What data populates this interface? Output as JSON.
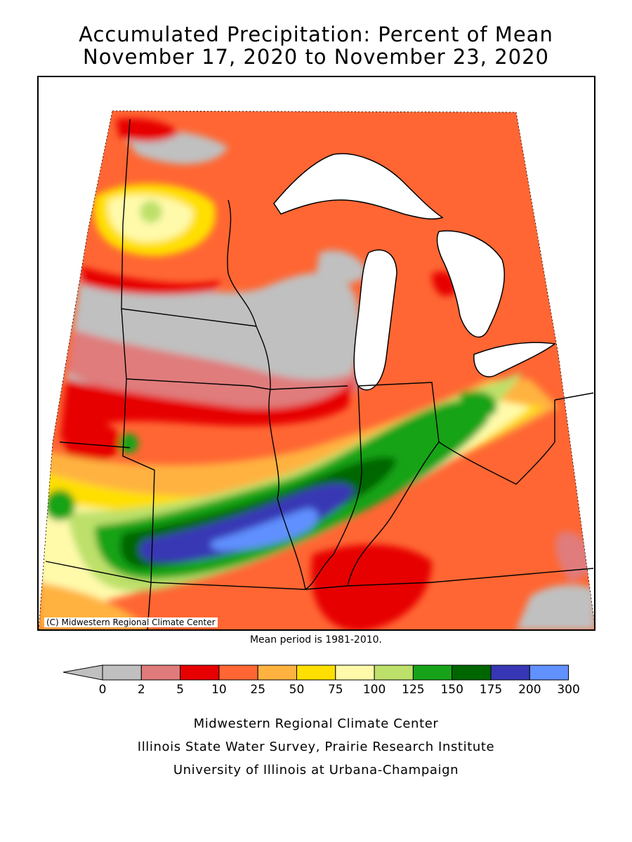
{
  "title": {
    "line1": "Accumulated Precipitation: Percent of Mean",
    "line2": "November 17, 2020 to November 23, 2020"
  },
  "map": {
    "copyright": "(C) Midwestern Regional Climate Center",
    "note": "Mean period is 1981-2010."
  },
  "legend": {
    "ticks": [
      "0",
      "2",
      "5",
      "10",
      "25",
      "50",
      "75",
      "100",
      "125",
      "150",
      "175",
      "200",
      "300"
    ],
    "arrow_color": "#c0c0c0",
    "colors": [
      "#c0c0c0",
      "#e07b7b",
      "#e60000",
      "#ff6633",
      "#ffb23f",
      "#ffdf00",
      "#fffaaa",
      "#bde06a",
      "#17a319",
      "#006600",
      "#3737b5",
      "#6190ff"
    ]
  },
  "credits": {
    "line1": "Midwestern Regional Climate Center",
    "line2": "Illinois State Water Survey, Prairie Research Institute",
    "line3": "University of Illinois at Urbana-Champaign"
  },
  "palette": {
    "lake": "#ffffff",
    "border": "#000000"
  }
}
